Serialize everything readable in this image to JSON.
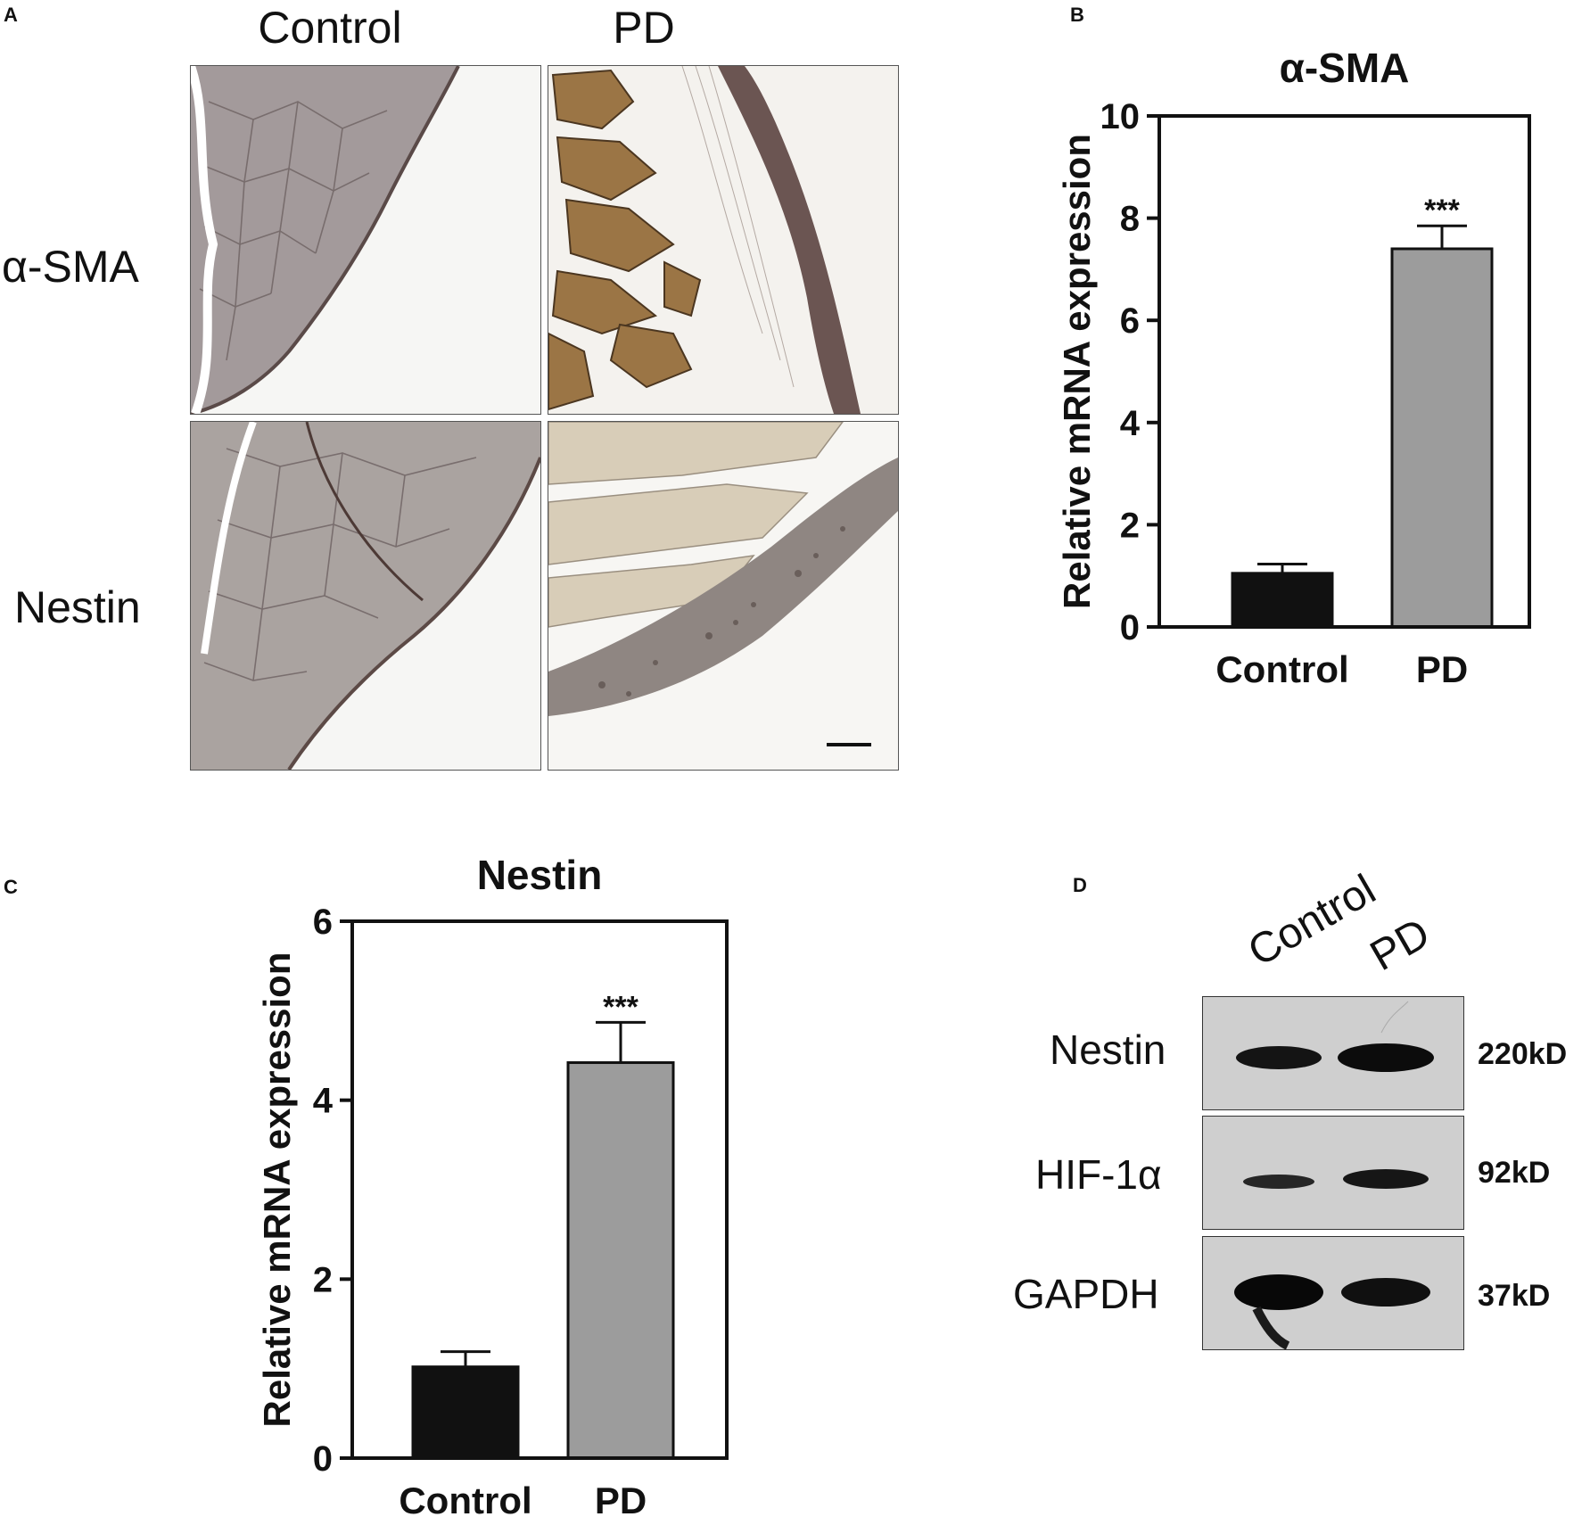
{
  "panels": {
    "A": {
      "letter": "A",
      "columns": [
        "Control",
        "PD"
      ],
      "rows": [
        "α-SMA",
        "Nestin"
      ]
    },
    "B": {
      "letter": "B"
    },
    "C": {
      "letter": "C"
    },
    "D": {
      "letter": "D",
      "lanes": [
        "Control",
        "PD"
      ],
      "bands": [
        {
          "label": "Nestin",
          "size": "220kD"
        },
        {
          "label": "HIF-1α",
          "size": "92kD"
        },
        {
          "label": "GAPDH",
          "size": "37kD"
        }
      ]
    }
  },
  "colors": {
    "control_bar": "#111111",
    "pd_bar": "#9c9c9c",
    "ihc_control": "#9a8f8f",
    "ihc_pd": "#8b6a3e"
  },
  "chart_data": [
    {
      "panel": "B",
      "type": "bar",
      "title": "α-SMA",
      "ylabel": "Relative mRNA expression",
      "xlabel": "",
      "categories": [
        "Control",
        "PD"
      ],
      "values": [
        1.05,
        7.4
      ],
      "errors": [
        0.18,
        0.45
      ],
      "significance": [
        "",
        "***"
      ],
      "ylim": [
        0,
        10
      ],
      "yticks": [
        0,
        2,
        4,
        6,
        8,
        10
      ],
      "grid": false
    },
    {
      "panel": "C",
      "type": "bar",
      "title": "Nestin",
      "ylabel": "Relative mRNA expression",
      "xlabel": "",
      "categories": [
        "Control",
        "PD"
      ],
      "values": [
        1.02,
        4.42
      ],
      "errors": [
        0.17,
        0.45
      ],
      "significance": [
        "",
        "***"
      ],
      "ylim": [
        0,
        6
      ],
      "yticks": [
        0,
        2,
        4,
        6
      ],
      "grid": false
    }
  ]
}
